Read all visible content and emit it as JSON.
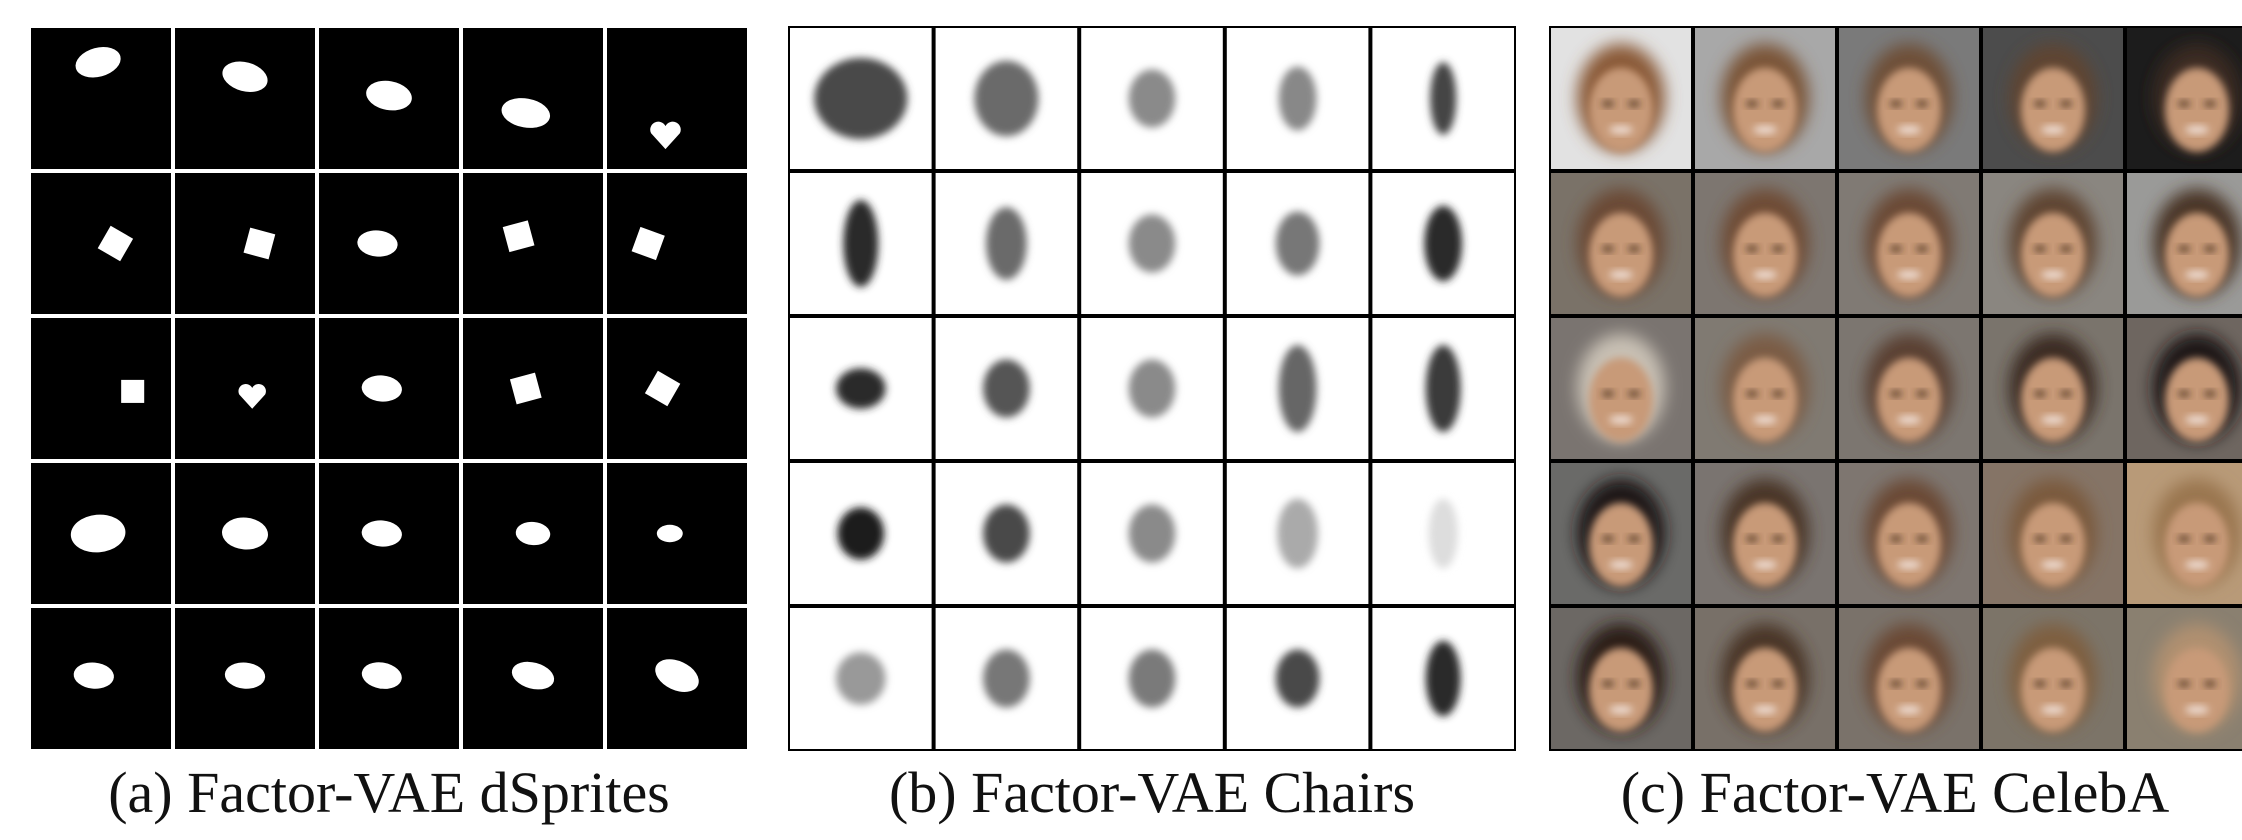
{
  "figure": {
    "panels": [
      {
        "caption": "(a) Factor-VAE dSprites"
      },
      {
        "caption": "(b) Factor-VAE Chairs"
      },
      {
        "caption": "(c) Factor-VAE CelebA"
      }
    ]
  }
}
